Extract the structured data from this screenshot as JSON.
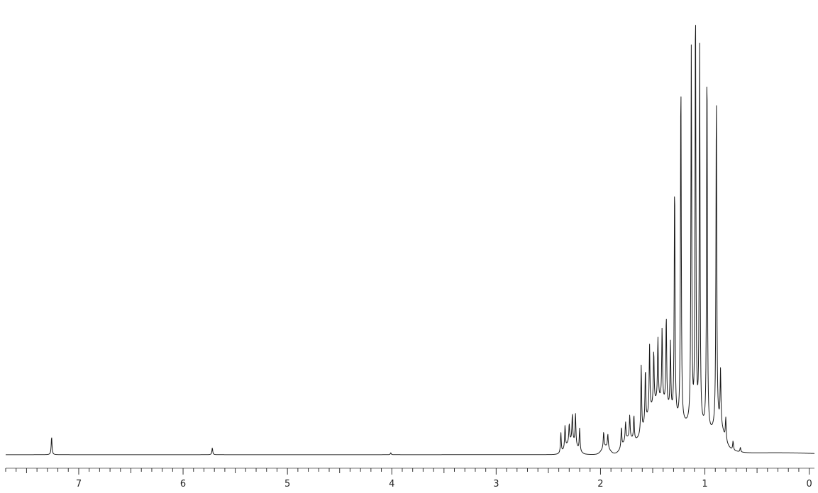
{
  "chart_data": {
    "type": "line",
    "title": "",
    "xlabel": "",
    "ylabel": "",
    "x_unit": "ppm",
    "xlim": [
      7.7,
      -0.05
    ],
    "ylim": [
      0,
      1.0
    ],
    "x_reversed": true,
    "grid": false,
    "tick_labels": [
      {
        "x": 7,
        "label": "7"
      },
      {
        "x": 6,
        "label": "6"
      },
      {
        "x": 5,
        "label": "5"
      },
      {
        "x": 4,
        "label": "4"
      },
      {
        "x": 3,
        "label": "3"
      },
      {
        "x": 2,
        "label": "2"
      },
      {
        "x": 1,
        "label": "1"
      },
      {
        "x": 0,
        "label": "0"
      }
    ],
    "series": [
      {
        "line_color": "#1a1a1a",
        "peaks": [
          {
            "x": 7.26,
            "height": 0.04
          },
          {
            "x": 5.72,
            "height": 0.015
          },
          {
            "x": 4.01,
            "height": 0.004
          },
          {
            "x": 2.38,
            "height": 0.045
          },
          {
            "x": 2.34,
            "height": 0.05
          },
          {
            "x": 2.3,
            "height": 0.04
          },
          {
            "x": 2.27,
            "height": 0.06
          },
          {
            "x": 2.24,
            "height": 0.07
          },
          {
            "x": 2.2,
            "height": 0.05
          },
          {
            "x": 1.97,
            "height": 0.035
          },
          {
            "x": 1.93,
            "height": 0.03
          },
          {
            "x": 1.8,
            "height": 0.045
          },
          {
            "x": 1.76,
            "height": 0.04
          },
          {
            "x": 1.72,
            "height": 0.05
          },
          {
            "x": 1.68,
            "height": 0.055
          },
          {
            "x": 1.61,
            "height": 0.15
          },
          {
            "x": 1.57,
            "height": 0.12
          },
          {
            "x": 1.53,
            "height": 0.15
          },
          {
            "x": 1.49,
            "height": 0.12
          },
          {
            "x": 1.45,
            "height": 0.14
          },
          {
            "x": 1.41,
            "height": 0.16
          },
          {
            "x": 1.37,
            "height": 0.2
          },
          {
            "x": 1.33,
            "height": 0.15
          },
          {
            "x": 1.29,
            "height": 0.53
          },
          {
            "x": 1.23,
            "height": 0.78
          },
          {
            "x": 1.13,
            "height": 0.84
          },
          {
            "x": 1.09,
            "height": 0.95
          },
          {
            "x": 1.05,
            "height": 0.84
          },
          {
            "x": 0.98,
            "height": 0.83
          },
          {
            "x": 0.89,
            "height": 0.75
          },
          {
            "x": 0.85,
            "height": 0.12
          },
          {
            "x": 0.8,
            "height": 0.05
          },
          {
            "x": 0.73,
            "height": 0.02
          },
          {
            "x": 0.66,
            "height": 0.01
          }
        ]
      }
    ]
  }
}
